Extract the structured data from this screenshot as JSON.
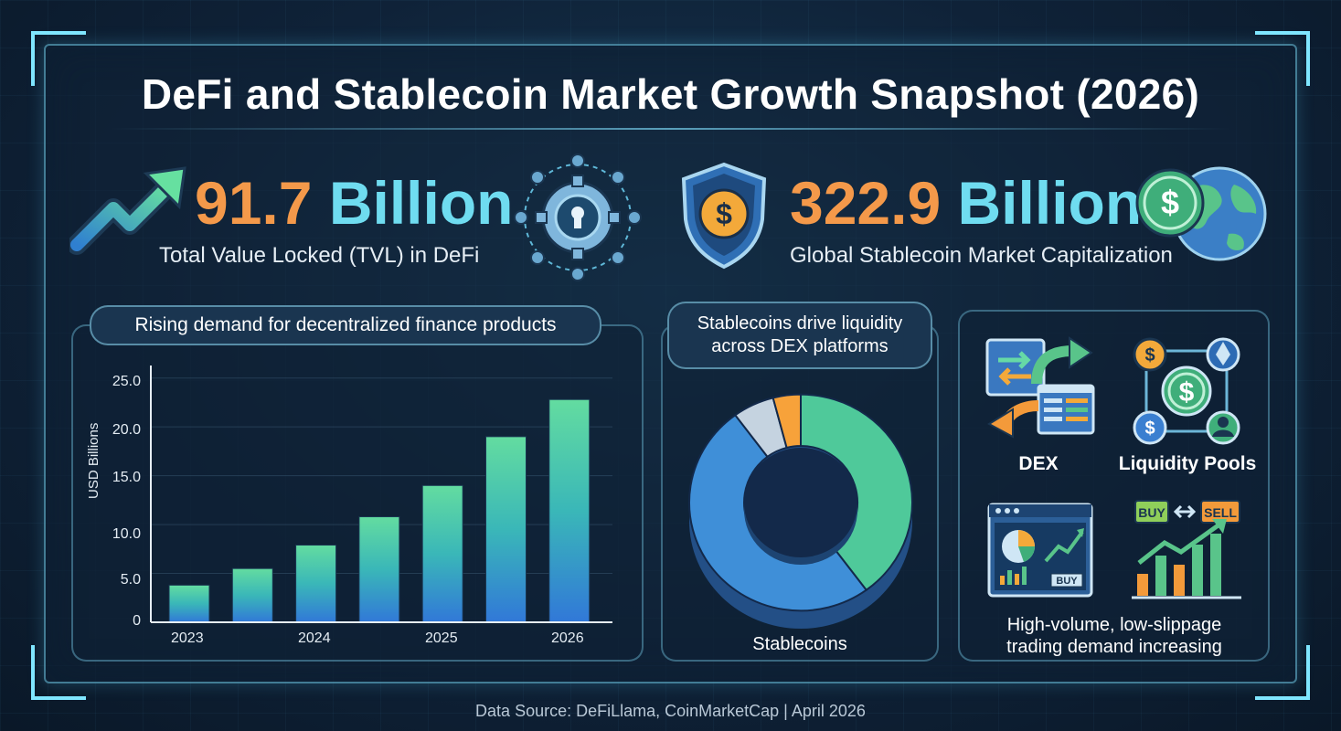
{
  "title": "DeFi and Stablecoin Market Growth Snapshot (2026)",
  "kpis": {
    "tvl": {
      "number": "91.7",
      "unit": "Billion",
      "label": "Total Value Locked (TVL) in DeFi"
    },
    "stablecoin": {
      "number": "322.9",
      "unit": "Billion",
      "label": "Global Stablecoin Market Capitalization"
    }
  },
  "bar_panel": {
    "heading": "Rising demand for decentralized finance products"
  },
  "donut_panel": {
    "heading_line1": "Stablecoins drive liquidity",
    "heading_line2": "across DEX platforms",
    "center_label": "Stablecoins"
  },
  "icons_panel": {
    "dex_label": "DEX",
    "pools_label": "Liquidity Pools",
    "buy_tag": "BUY",
    "sell_tag": "SELL",
    "screen_buy_tag": "BUY",
    "caption_line1": "High-volume, low-slippage",
    "caption_line2": "trading demand increasing"
  },
  "footer": "Data Source: DeFiLlama, CoinMarketCap | April 2026",
  "colors": {
    "accent_orange": "#f4994a",
    "accent_cyan": "#6fdcf0",
    "bar_top": "#63dca0",
    "bar_bottom": "#3178d8"
  },
  "chart_data": [
    {
      "type": "bar",
      "title": "Rising demand for decentralized finance products",
      "ylabel": "USD Billions",
      "xlabel": "",
      "x_tick_labels": [
        "2023",
        "2024",
        "2025",
        "2026"
      ],
      "y_tick_labels": [
        "0",
        "5.0",
        "10.0",
        "15.0",
        "20.0",
        "25.0"
      ],
      "ylim": [
        0,
        26
      ],
      "values": [
        3.8,
        5.5,
        7.9,
        10.8,
        14.0,
        19.0,
        22.8
      ],
      "grid": true
    },
    {
      "type": "pie",
      "style": "donut",
      "label": "Stablecoins",
      "slices": [
        {
          "share": 0.4,
          "color": "#4fc99a"
        },
        {
          "share": 0.5,
          "color": "#3f8fd8"
        },
        {
          "share": 0.06,
          "color": "#c5d3e0"
        },
        {
          "share": 0.04,
          "color": "#f7a23a"
        }
      ]
    }
  ]
}
